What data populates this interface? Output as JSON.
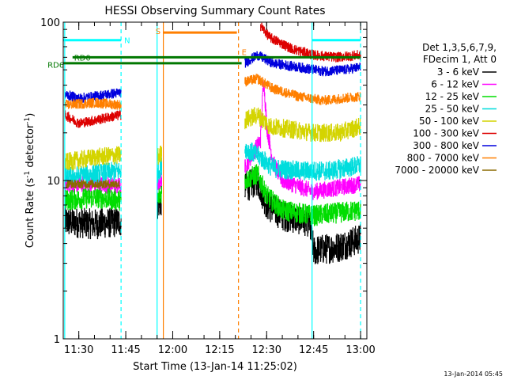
{
  "chart_data": {
    "type": "line",
    "title": "HESSI Observing Summary Count Rates",
    "xlabel": "Start Time (13-Jan-14 11:25:02)",
    "ylabel_main": "Count Rate (s",
    "ylabel_sup1": "-1",
    "ylabel_mid": " detector",
    "ylabel_sup2": "-1",
    "ylabel_end": ")",
    "y_scale": "log",
    "ylim": [
      1,
      100
    ],
    "xlim": [
      "11:25:02",
      "13:02:00"
    ],
    "x_ticks": [
      {
        "t": "11:30",
        "label": "11:30"
      },
      {
        "t": "11:45",
        "label": "11:45"
      },
      {
        "t": "12:00",
        "label": "12:00"
      },
      {
        "t": "12:15",
        "label": "12:15"
      },
      {
        "t": "12:30",
        "label": "12:30"
      },
      {
        "t": "12:45",
        "label": "12:45"
      },
      {
        "t": "13:00",
        "label": "13:00"
      }
    ],
    "y_ticks": [
      {
        "v": 1,
        "label": "1"
      },
      {
        "v": 10,
        "label": "10"
      },
      {
        "v": 100,
        "label": "100"
      }
    ],
    "legend": {
      "position": "right",
      "header_line1": "Det 1,3,5,6,7,9,",
      "header_line2": "FDecim 1, Att 0",
      "entries": [
        {
          "label": "3 - 6 keV",
          "color": "#000000"
        },
        {
          "label": "6 - 12 keV",
          "color": "#ff00ff"
        },
        {
          "label": "12 - 25 keV",
          "color": "#00dd00"
        },
        {
          "label": "25 - 50 keV",
          "color": "#00dddd"
        },
        {
          "label": "50 - 100 keV",
          "color": "#d4d400"
        },
        {
          "label": "100 - 300 keV",
          "color": "#dd0000"
        },
        {
          "label": "300 - 800 keV",
          "color": "#0000dd"
        },
        {
          "label": "800 - 7000 keV",
          "color": "#ff7f00"
        },
        {
          "label": "7000 - 20000 keV",
          "color": "#8b6a00"
        }
      ]
    },
    "segments": [
      {
        "start": "11:25:30",
        "end": "11:43:30"
      },
      {
        "start": "11:55:00",
        "end": "11:56:30"
      },
      {
        "start": "12:23:00",
        "end": "13:00:00"
      }
    ],
    "series": [
      {
        "name": "3 - 6 keV",
        "color": "#000000",
        "noise": 0.22,
        "points": [
          [
            "11:25:30",
            5.5
          ],
          [
            "11:35:00",
            5.3
          ],
          [
            "11:43:30",
            5.5
          ],
          [
            "11:55:00",
            7.0
          ],
          [
            "11:56:30",
            7.5
          ],
          [
            "12:23:00",
            9.0
          ],
          [
            "12:27:00",
            10.0
          ],
          [
            "12:30:00",
            7.0
          ],
          [
            "12:35:00",
            6.0
          ],
          [
            "12:43:30",
            5.5
          ],
          [
            "12:45:00",
            3.6
          ],
          [
            "12:53:00",
            3.8
          ],
          [
            "13:00:00",
            4.3
          ]
        ]
      },
      {
        "name": "6 - 12 keV",
        "color": "#ff00ff",
        "noise": 0.12,
        "points": [
          [
            "11:25:30",
            9.5
          ],
          [
            "11:35:00",
            9.5
          ],
          [
            "11:43:30",
            9.2
          ],
          [
            "11:55:00",
            9.0
          ],
          [
            "11:56:30",
            10.5
          ],
          [
            "12:23:00",
            12.0
          ],
          [
            "12:28:00",
            18.0
          ],
          [
            "12:29:00",
            45.0
          ],
          [
            "12:30:00",
            22.0
          ],
          [
            "12:32:00",
            13.0
          ],
          [
            "12:35:00",
            10.0
          ],
          [
            "12:45:00",
            8.5
          ],
          [
            "13:00:00",
            9.5
          ]
        ]
      },
      {
        "name": "12 - 25 keV",
        "color": "#00dd00",
        "noise": 0.15,
        "points": [
          [
            "11:25:30",
            7.5
          ],
          [
            "11:35:00",
            7.8
          ],
          [
            "11:43:30",
            7.5
          ],
          [
            "11:55:00",
            7.5
          ],
          [
            "11:56:30",
            8.5
          ],
          [
            "12:23:00",
            10.0
          ],
          [
            "12:27:00",
            11.0
          ],
          [
            "12:30:00",
            8.0
          ],
          [
            "12:35:00",
            6.5
          ],
          [
            "12:45:00",
            6.0
          ],
          [
            "13:00:00",
            6.5
          ]
        ]
      },
      {
        "name": "25 - 50 keV",
        "color": "#00dddd",
        "noise": 0.14,
        "points": [
          [
            "11:25:30",
            10.5
          ],
          [
            "11:35:00",
            11.0
          ],
          [
            "11:43:30",
            11.5
          ],
          [
            "11:55:00",
            11.0
          ],
          [
            "11:56:30",
            12.5
          ],
          [
            "12:23:00",
            16.0
          ],
          [
            "12:28:00",
            14.0
          ],
          [
            "12:32:00",
            12.0
          ],
          [
            "12:40:00",
            11.5
          ],
          [
            "12:50:00",
            11.5
          ],
          [
            "13:00:00",
            12.5
          ]
        ]
      },
      {
        "name": "50 - 100 keV",
        "color": "#d4d400",
        "noise": 0.13,
        "points": [
          [
            "11:25:30",
            13.0
          ],
          [
            "11:35:00",
            14.0
          ],
          [
            "11:43:30",
            14.5
          ],
          [
            "11:55:00",
            14.0
          ],
          [
            "11:56:30",
            15.0
          ],
          [
            "12:23:00",
            24.0
          ],
          [
            "12:27:00",
            26.0
          ],
          [
            "12:31:00",
            22.0
          ],
          [
            "12:38:00",
            21.0
          ],
          [
            "12:45:00",
            20.0
          ],
          [
            "12:53:00",
            20.0
          ],
          [
            "13:00:00",
            22.0
          ]
        ]
      },
      {
        "name": "100 - 300 keV",
        "color": "#dd0000",
        "noise": 0.07,
        "points": [
          [
            "11:25:30",
            26.0
          ],
          [
            "11:30:00",
            23.0
          ],
          [
            "11:35:00",
            24.0
          ],
          [
            "11:43:30",
            26.0
          ],
          [
            "11:45:00",
            58.0
          ],
          [
            "11:50:00",
            50.0
          ],
          [
            "11:52:00",
            48.0
          ],
          [
            "12:28:00",
            95.0
          ],
          [
            "12:31:00",
            80.0
          ],
          [
            "12:38:00",
            68.0
          ],
          [
            "12:45:00",
            62.0
          ],
          [
            "12:52:00",
            60.0
          ],
          [
            "13:00:00",
            62.0
          ]
        ]
      },
      {
        "name": "300 - 800 keV",
        "color": "#0000dd",
        "noise": 0.07,
        "points": [
          [
            "11:25:30",
            35.0
          ],
          [
            "11:30:00",
            33.0
          ],
          [
            "11:35:00",
            34.0
          ],
          [
            "11:43:30",
            36.0
          ],
          [
            "11:45:00",
            40.0
          ],
          [
            "11:50:00",
            38.0
          ],
          [
            "11:52:00",
            35.0
          ],
          [
            "12:23:00",
            55.0
          ],
          [
            "12:27:00",
            62.0
          ],
          [
            "12:32:00",
            55.0
          ],
          [
            "12:40:00",
            52.0
          ],
          [
            "12:48:00",
            49.0
          ],
          [
            "12:55:00",
            50.0
          ],
          [
            "13:00:00",
            52.0
          ]
        ]
      },
      {
        "name": "800 - 7000 keV",
        "color": "#ff7f00",
        "noise": 0.07,
        "points": [
          [
            "11:25:30",
            30.0
          ],
          [
            "11:35:00",
            31.0
          ],
          [
            "11:43:30",
            30.0
          ],
          [
            "11:45:00",
            28.0
          ],
          [
            "11:50:00",
            27.0
          ],
          [
            "11:52:00",
            27.0
          ],
          [
            "12:23:00",
            42.0
          ],
          [
            "12:27:00",
            44.0
          ],
          [
            "12:32:00",
            38.0
          ],
          [
            "12:40:00",
            34.0
          ],
          [
            "12:48:00",
            32.0
          ],
          [
            "13:00:00",
            34.0
          ]
        ]
      },
      {
        "name": "7000 - 20000 keV",
        "color": "#8b6a00",
        "noise": 0.06,
        "points": [
          [
            "11:26:00",
            9.5
          ],
          [
            "11:35:00",
            9.5
          ],
          [
            "11:43:00",
            9.5
          ]
        ]
      }
    ],
    "annotations": [
      {
        "label": "N",
        "t1": "11:25:02",
        "t2": "11:43:30",
        "level": 77,
        "color": "#00ffff",
        "text_t": "11:44:30",
        "text_level": 77
      },
      {
        "label": "N",
        "t1": "12:44:30",
        "t2": "13:00:00",
        "level": 77,
        "color": "#00ffff",
        "text_t": "",
        "text_level": 77
      },
      {
        "label": "S",
        "t1": "11:57:00",
        "t2": "12:20:30",
        "level": 86,
        "color": "#ff7f00",
        "text_t": "11:54:30",
        "text_level": 88
      },
      {
        "label": "RD0",
        "t1": "11:28:00",
        "t2": "13:00:00",
        "level": 60,
        "color": "#007700",
        "text_t": "11:28:30",
        "text_level": 60
      },
      {
        "label": "RD6",
        "t1": "11:25:02",
        "t2": "12:22:00",
        "level": 55,
        "color": "#007700",
        "text_t": "11:20:00",
        "text_level": 54
      },
      {
        "label": "E",
        "t1": "",
        "t2": "",
        "level": 0,
        "color": "#ff7f00",
        "text_t": "12:22:00",
        "text_level": 65
      }
    ],
    "vlines": [
      {
        "t": "11:25:30",
        "color": "#00ffff",
        "style": "solid"
      },
      {
        "t": "11:43:30",
        "color": "#00ffff",
        "style": "dashed"
      },
      {
        "t": "11:55:00",
        "color": "#00ffff",
        "style": "solid"
      },
      {
        "t": "11:57:00",
        "color": "#ff7f00",
        "style": "solid"
      },
      {
        "t": "12:21:00",
        "color": "#ff7f00",
        "style": "dashed"
      },
      {
        "t": "12:44:30",
        "color": "#00ffff",
        "style": "solid"
      },
      {
        "t": "13:00:00",
        "color": "#00ffff",
        "style": "dashed"
      }
    ],
    "timestamp": "13-Jan-2014 05:45"
  }
}
